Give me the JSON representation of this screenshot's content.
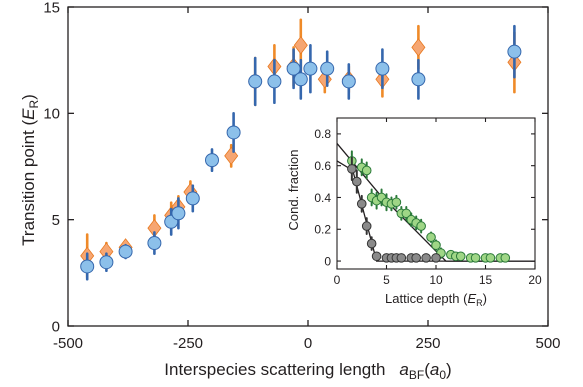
{
  "chart_data": [
    {
      "type": "scatter",
      "xlabel": {
        "main": "Interspecies scattering length",
        "sym": "a",
        "sub": "BF",
        "open": "(",
        "unit": "a",
        "usub": "0",
        "close": ")"
      },
      "ylabel": {
        "main": "Transition point (",
        "unit": "E",
        "usub": "R",
        "close": ")"
      },
      "xlim": [
        -500,
        500
      ],
      "ylim": [
        0,
        15
      ],
      "xticks": [
        -500,
        -250,
        0,
        250,
        500
      ],
      "xtick_labels": [
        "-500",
        "-250",
        "0",
        "250",
        "500"
      ],
      "yticks": [
        0,
        5,
        10,
        15
      ],
      "ytick_labels": [
        "0",
        "5",
        "10",
        "15"
      ],
      "grid": false,
      "series": [
        {
          "marker": "diamond",
          "color": "#f6a672",
          "stroke": "#e8781e",
          "errcolor": "#ef8a28",
          "points": [
            {
              "x": -460,
              "y": 3.3,
              "err": 1.0
            },
            {
              "x": -420,
              "y": 3.5,
              "err": 0.4
            },
            {
              "x": -380,
              "y": 3.7,
              "err": 0.3
            },
            {
              "x": -320,
              "y": 4.6,
              "err": 0.6
            },
            {
              "x": -285,
              "y": 5.2,
              "err": 0.6
            },
            {
              "x": -270,
              "y": 5.6,
              "err": 0.5
            },
            {
              "x": -245,
              "y": 6.3,
              "err": 0.5
            },
            {
              "x": -160,
              "y": 8.0,
              "err": 0.5
            },
            {
              "x": -110,
              "y": 11.5,
              "err": 1.1
            },
            {
              "x": -70,
              "y": 12.2,
              "err": 1.0
            },
            {
              "x": -30,
              "y": 12.2,
              "err": 0.9
            },
            {
              "x": -15,
              "y": 13.2,
              "err": 1.2
            },
            {
              "x": 35,
              "y": 11.6,
              "err": 0.6
            },
            {
              "x": 85,
              "y": 11.6,
              "err": 0.6
            },
            {
              "x": 155,
              "y": 11.6,
              "err": 0.8
            },
            {
              "x": 230,
              "y": 13.1,
              "err": 1.0
            },
            {
              "x": 430,
              "y": 12.4,
              "err": 1.4
            }
          ]
        },
        {
          "marker": "circle",
          "color": "#8cc0ea",
          "stroke": "#3567ad",
          "errcolor": "#3567ad",
          "points": [
            {
              "x": -460,
              "y": 2.8,
              "err": 0.6
            },
            {
              "x": -420,
              "y": 3.0,
              "err": 0.4
            },
            {
              "x": -380,
              "y": 3.5,
              "err": 0.3
            },
            {
              "x": -320,
              "y": 3.9,
              "err": 0.5
            },
            {
              "x": -285,
              "y": 4.9,
              "err": 0.6
            },
            {
              "x": -270,
              "y": 5.3,
              "err": 0.7
            },
            {
              "x": -240,
              "y": 6.0,
              "err": 0.6
            },
            {
              "x": -200,
              "y": 7.8,
              "err": 0.5
            },
            {
              "x": -155,
              "y": 9.1,
              "err": 0.9
            },
            {
              "x": -110,
              "y": 11.5,
              "err": 1.1
            },
            {
              "x": -70,
              "y": 11.5,
              "err": 1.0
            },
            {
              "x": -30,
              "y": 12.1,
              "err": 0.9
            },
            {
              "x": -15,
              "y": 11.6,
              "err": 0.9
            },
            {
              "x": 5,
              "y": 12.1,
              "err": 1.1
            },
            {
              "x": 40,
              "y": 12.1,
              "err": 0.8
            },
            {
              "x": 85,
              "y": 11.5,
              "err": 0.8
            },
            {
              "x": 155,
              "y": 12.1,
              "err": 0.9
            },
            {
              "x": 230,
              "y": 11.6,
              "err": 0.9
            },
            {
              "x": 430,
              "y": 12.9,
              "err": 1.2
            }
          ]
        }
      ]
    },
    {
      "type": "scatter",
      "inset": true,
      "xlabel": {
        "main": "Lattice depth (",
        "unit": "E",
        "usub": "R",
        "close": ")"
      },
      "ylabel": {
        "main": "Cond. fraction"
      },
      "xlim": [
        0,
        20
      ],
      "ylim": [
        -0.05,
        0.9
      ],
      "xticks": [
        0,
        5,
        10,
        15,
        20
      ],
      "xtick_labels": [
        "0",
        "5",
        "10",
        "15",
        "20"
      ],
      "yticks": [
        0,
        0.2,
        0.4,
        0.6,
        0.8
      ],
      "ytick_labels": [
        "0",
        "0.2",
        "0.4",
        "0.6",
        "0.8"
      ],
      "grid": false,
      "series": [
        {
          "marker": "circle",
          "color": "#9fd686",
          "stroke": "#2b7a3a",
          "errcolor": "#2b7a3a",
          "points": [
            {
              "x": 1.5,
              "y": 0.63,
              "err": 0.06
            },
            {
              "x": 2.5,
              "y": 0.59,
              "err": 0.05
            },
            {
              "x": 3.0,
              "y": 0.57,
              "err": 0.05
            },
            {
              "x": 3.5,
              "y": 0.4,
              "err": 0.05
            },
            {
              "x": 4.0,
              "y": 0.38,
              "err": 0.05
            },
            {
              "x": 4.5,
              "y": 0.4,
              "err": 0.05
            },
            {
              "x": 5.0,
              "y": 0.37,
              "err": 0.05
            },
            {
              "x": 5.5,
              "y": 0.36,
              "err": 0.04
            },
            {
              "x": 6.0,
              "y": 0.37,
              "err": 0.04
            },
            {
              "x": 6.5,
              "y": 0.3,
              "err": 0.04
            },
            {
              "x": 7.0,
              "y": 0.3,
              "err": 0.04
            },
            {
              "x": 7.5,
              "y": 0.26,
              "err": 0.04
            },
            {
              "x": 8.0,
              "y": 0.24,
              "err": 0.04
            },
            {
              "x": 8.5,
              "y": 0.22,
              "err": 0.04
            },
            {
              "x": 9.5,
              "y": 0.15,
              "err": 0.03
            },
            {
              "x": 10.0,
              "y": 0.1,
              "err": 0.03
            },
            {
              "x": 10.5,
              "y": 0.05,
              "err": 0.03
            },
            {
              "x": 11.5,
              "y": 0.04,
              "err": 0.02
            },
            {
              "x": 12.0,
              "y": 0.03,
              "err": 0.02
            },
            {
              "x": 12.5,
              "y": 0.03,
              "err": 0.02
            },
            {
              "x": 13.5,
              "y": 0.02,
              "err": 0.02
            },
            {
              "x": 14.0,
              "y": 0.02,
              "err": 0.02
            },
            {
              "x": 15.0,
              "y": 0.02,
              "err": 0.02
            },
            {
              "x": 15.5,
              "y": 0.02,
              "err": 0.02
            },
            {
              "x": 16.5,
              "y": 0.02,
              "err": 0.02
            },
            {
              "x": 17.0,
              "y": 0.02,
              "err": 0.02
            }
          ]
        },
        {
          "marker": "circle",
          "color": "#8a8a8a",
          "stroke": "#333333",
          "errcolor": "#333333",
          "points": [
            {
              "x": 1.5,
              "y": 0.58,
              "err": 0.07
            },
            {
              "x": 2.0,
              "y": 0.5,
              "err": 0.07
            },
            {
              "x": 2.5,
              "y": 0.36,
              "err": 0.05
            },
            {
              "x": 3.0,
              "y": 0.22,
              "err": 0.05
            },
            {
              "x": 3.5,
              "y": 0.11,
              "err": 0.04
            },
            {
              "x": 4.0,
              "y": 0.03,
              "err": 0.02
            },
            {
              "x": 5.0,
              "y": 0.02,
              "err": 0.02
            },
            {
              "x": 5.5,
              "y": 0.02,
              "err": 0.02
            },
            {
              "x": 6.0,
              "y": 0.02,
              "err": 0.02
            },
            {
              "x": 6.5,
              "y": 0.02,
              "err": 0.02
            },
            {
              "x": 7.5,
              "y": 0.02,
              "err": 0.02
            },
            {
              "x": 8.0,
              "y": 0.02,
              "err": 0.02
            },
            {
              "x": 9.0,
              "y": 0.02,
              "err": 0.02
            },
            {
              "x": 10.0,
              "y": 0.02,
              "err": 0.02
            }
          ]
        }
      ],
      "fit_lines": [
        {
          "color": "#231f20",
          "points": [
            [
              0,
              0.74
            ],
            [
              4.3,
              0.42
            ],
            [
              11,
              0.0
            ],
            [
              20,
              0.0
            ]
          ]
        },
        {
          "color": "#231f20",
          "points": [
            [
              0,
              0.63
            ],
            [
              1.6,
              0.57
            ],
            [
              4.0,
              0.0
            ],
            [
              20,
              0.0
            ]
          ]
        }
      ]
    }
  ]
}
